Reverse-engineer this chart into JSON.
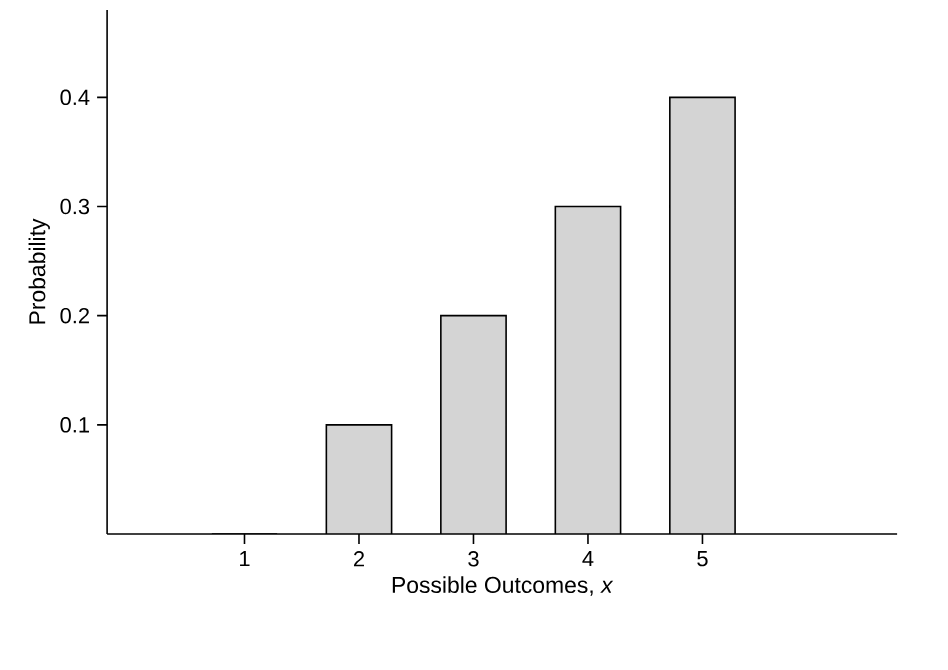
{
  "chart_data": {
    "type": "bar",
    "xlabel": "Possible Outcomes, *x*",
    "ylabel": "Probability",
    "x": [
      1,
      2,
      3,
      4,
      5
    ],
    "values": [
      0,
      0.1,
      0.2,
      0.3,
      0.4
    ],
    "color": "#d4d4d4",
    "xlim": [
      -0.2,
      6.7
    ],
    "xticks": [
      1,
      2,
      3,
      4,
      5
    ],
    "ylim": [
      0,
      0.48
    ],
    "yticks": [
      0.1,
      0.2,
      0.3,
      0.4
    ],
    "grid": false
  }
}
